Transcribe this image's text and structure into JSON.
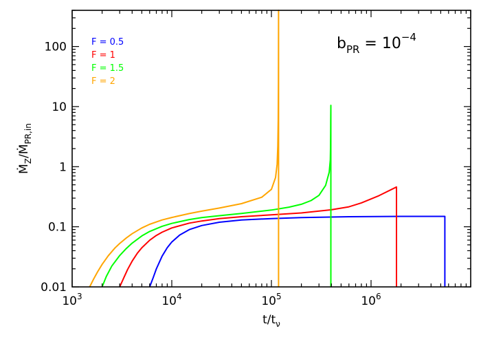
{
  "chart_data": {
    "type": "line",
    "title": "",
    "xlabel": {
      "base": "t/t",
      "sub": "ν"
    },
    "ylabel": {
      "num": "Ṁ",
      "num_sub": "Z",
      "den": "Ṁ",
      "den_sub": "PR,in"
    },
    "xscale": "log",
    "yscale": "log",
    "xlim": [
      1000,
      10000000
    ],
    "ylim": [
      0.01,
      400
    ],
    "grid": false,
    "legend_placement": "top-left",
    "x_ticks": [
      {
        "value": 1000,
        "base": "10",
        "exp": "3"
      },
      {
        "value": 10000,
        "base": "10",
        "exp": "4"
      },
      {
        "value": 100000,
        "base": "10",
        "exp": "5"
      },
      {
        "value": 1000000,
        "base": "10",
        "exp": "6"
      }
    ],
    "y_ticks": [
      {
        "value": 0.01,
        "label": "0.01"
      },
      {
        "value": 0.1,
        "label": "0.1"
      },
      {
        "value": 1,
        "label": "1"
      },
      {
        "value": 10,
        "label": "10"
      },
      {
        "value": 100,
        "label": "100"
      }
    ],
    "annotation": {
      "prefix": "b",
      "sub": "PR",
      "mid": " = 10",
      "sup": "−4"
    },
    "series": [
      {
        "name": "F = 0.5",
        "color": "#0000ff",
        "x": [
          6000,
          6500,
          7000,
          8000,
          9000,
          10000,
          12000,
          15000,
          20000,
          30000,
          50000,
          100000,
          200000,
          600000,
          2000000,
          5500000,
          5500000
        ],
        "y": [
          0.01,
          0.0142,
          0.0199,
          0.0325,
          0.0449,
          0.0558,
          0.0729,
          0.0898,
          0.105,
          0.119,
          0.13,
          0.137,
          0.142,
          0.147,
          0.149,
          0.149,
          0.01
        ]
      },
      {
        "name": "F = 1",
        "color": "#ff0000",
        "x": [
          3000,
          3300,
          3600,
          4000,
          4500,
          5000,
          6000,
          7000,
          8000,
          10000,
          15000,
          20000,
          30000,
          50000,
          100000,
          200000,
          400000,
          600000,
          800000,
          1200000,
          1800000,
          1800000
        ],
        "y": [
          0.01,
          0.0142,
          0.0195,
          0.0268,
          0.0361,
          0.0448,
          0.0598,
          0.0718,
          0.0813,
          0.0958,
          0.115,
          0.125,
          0.137,
          0.147,
          0.158,
          0.17,
          0.192,
          0.215,
          0.25,
          0.33,
          0.46,
          0.01
        ]
      },
      {
        "name": "F = 1.5",
        "color": "#00ff00",
        "x": [
          2000,
          2200,
          2500,
          3000,
          3500,
          4000,
          5000,
          6000,
          8000,
          10000,
          15000,
          20000,
          30000,
          50000,
          100000,
          150000,
          200000,
          250000,
          300000,
          350000,
          380000,
          390000,
          392000,
          393000,
          394000,
          395000,
          395000
        ],
        "y": [
          0.01,
          0.0149,
          0.0222,
          0.0333,
          0.0437,
          0.0535,
          0.0705,
          0.0837,
          0.102,
          0.114,
          0.132,
          0.142,
          0.153,
          0.167,
          0.19,
          0.212,
          0.237,
          0.273,
          0.334,
          0.489,
          0.812,
          1.3,
          2.0,
          3.5,
          6.0,
          10.5,
          0.01
        ]
      },
      {
        "name": "F = 2",
        "color": "#ffa500",
        "x": [
          1500,
          1650,
          1800,
          2000,
          2300,
          2700,
          3000,
          3500,
          4000,
          5000,
          6000,
          8000,
          10000,
          15000,
          20000,
          30000,
          50000,
          80000,
          100000,
          110000,
          114000,
          116000,
          117000,
          117500,
          117800,
          118000,
          118000
        ],
        "y": [
          0.01,
          0.0137,
          0.0178,
          0.0237,
          0.0329,
          0.0447,
          0.0528,
          0.0654,
          0.0768,
          0.0958,
          0.11,
          0.13,
          0.143,
          0.166,
          0.182,
          0.205,
          0.243,
          0.31,
          0.42,
          0.66,
          1.1,
          2.2,
          6,
          25,
          100,
          400,
          0.01
        ]
      }
    ]
  }
}
